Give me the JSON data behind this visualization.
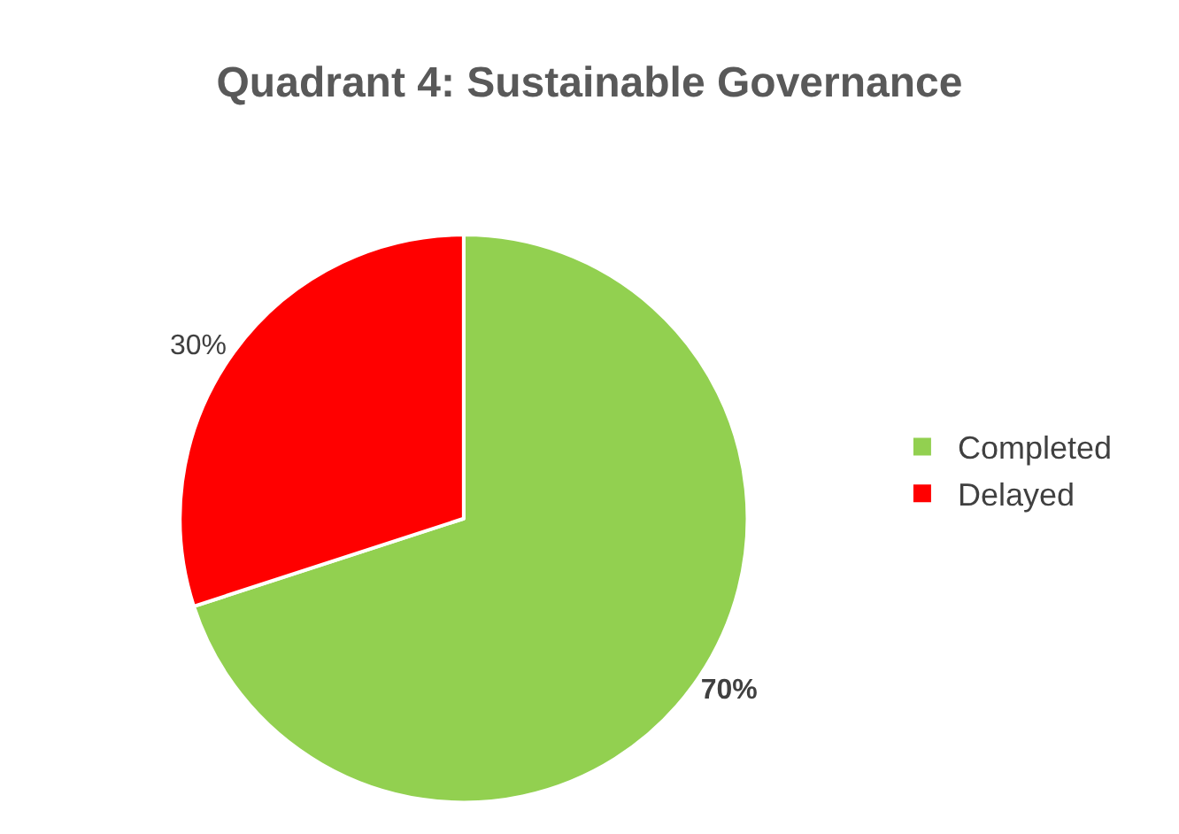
{
  "chart_data": {
    "type": "pie",
    "title": "Quadrant 4: Sustainable Governance",
    "categories": [
      "Completed",
      "Delayed"
    ],
    "values": [
      70,
      30
    ],
    "colors": [
      "#92d050",
      "#ff0000"
    ],
    "value_labels": [
      "70%",
      "30%"
    ],
    "legend": "right"
  }
}
